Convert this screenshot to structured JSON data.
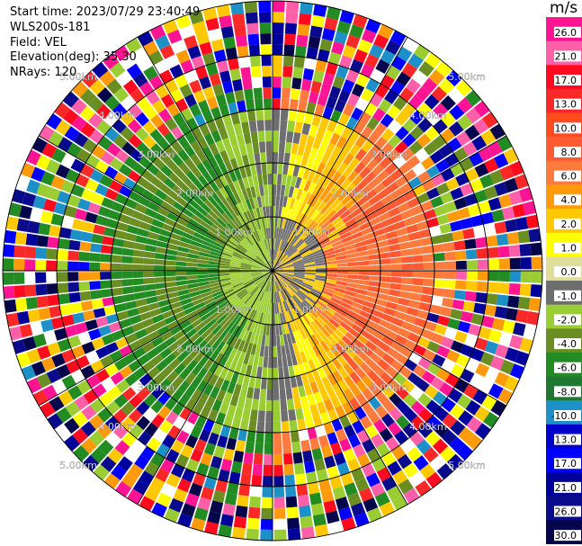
{
  "header": {
    "start_time": "Start time: 2023/07/29 23:40:49",
    "instrument": "WLS200s-181",
    "field": "Field: VEL",
    "elevation": "Elevation(deg): 35.30",
    "nrays": "NRays: 120"
  },
  "colorbar": {
    "unit": "m/s",
    "labels": [
      "26.0",
      "21.0",
      "17.0",
      "13.0",
      "10.0",
      "8.0",
      "6.0",
      "4.0",
      "2.0",
      "1.0",
      "0.0",
      "-1.0",
      "-2.0",
      "-4.0",
      "-6.0",
      "-8.0",
      "-10.0",
      "-13.0",
      "-17.0",
      "-21.0",
      "-26.0",
      "-30.0"
    ],
    "colors": [
      "#ff1493",
      "#ff5ea8",
      "#ff0a1e",
      "#fb2828",
      "#ff4b1e",
      "#ff5a32",
      "#ff7a3c",
      "#ff9a0a",
      "#ffc800",
      "#ffff00",
      "#dede9a",
      "#6e6e6e",
      "#9acd32",
      "#6b8e23",
      "#228b22",
      "#1e7832",
      "#1e90c8",
      "#0000c8",
      "#0000ff",
      "#00009b",
      "#0a0a8c",
      "#05054b"
    ]
  },
  "radar": {
    "range_rings_km": [
      1,
      2,
      3,
      4,
      5
    ],
    "ring_labels": [
      "1.00km",
      "2.00km",
      "3.00km",
      "4.00km",
      "5.00km"
    ],
    "spoke_count": 12
  }
}
